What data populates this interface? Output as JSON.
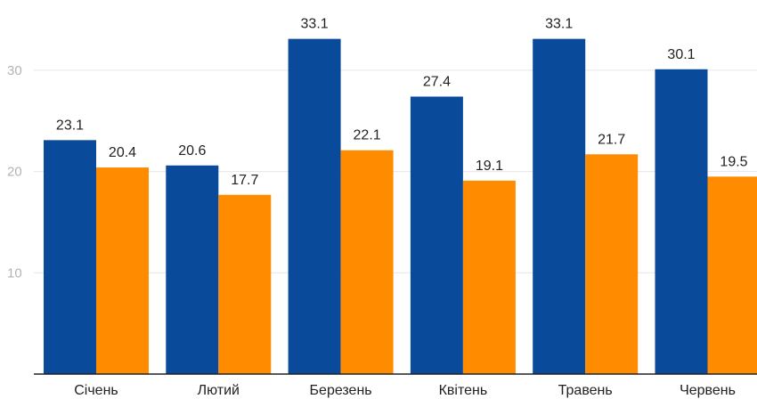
{
  "chart_data": {
    "type": "bar",
    "categories": [
      "Січень",
      "Лютий",
      "Березень",
      "Квітень",
      "Травень",
      "Червень"
    ],
    "series": [
      {
        "values": [
          23.1,
          20.6,
          33.1,
          27.4,
          33.1,
          30.1
        ],
        "color": "#0a4a9a"
      },
      {
        "values": [
          20.4,
          17.7,
          22.1,
          19.1,
          21.7,
          19.5
        ],
        "color": "#ff8c00"
      }
    ],
    "ylim": [
      0,
      35
    ],
    "yticks": [
      10,
      20,
      30
    ],
    "grid": true,
    "legend": "none"
  }
}
